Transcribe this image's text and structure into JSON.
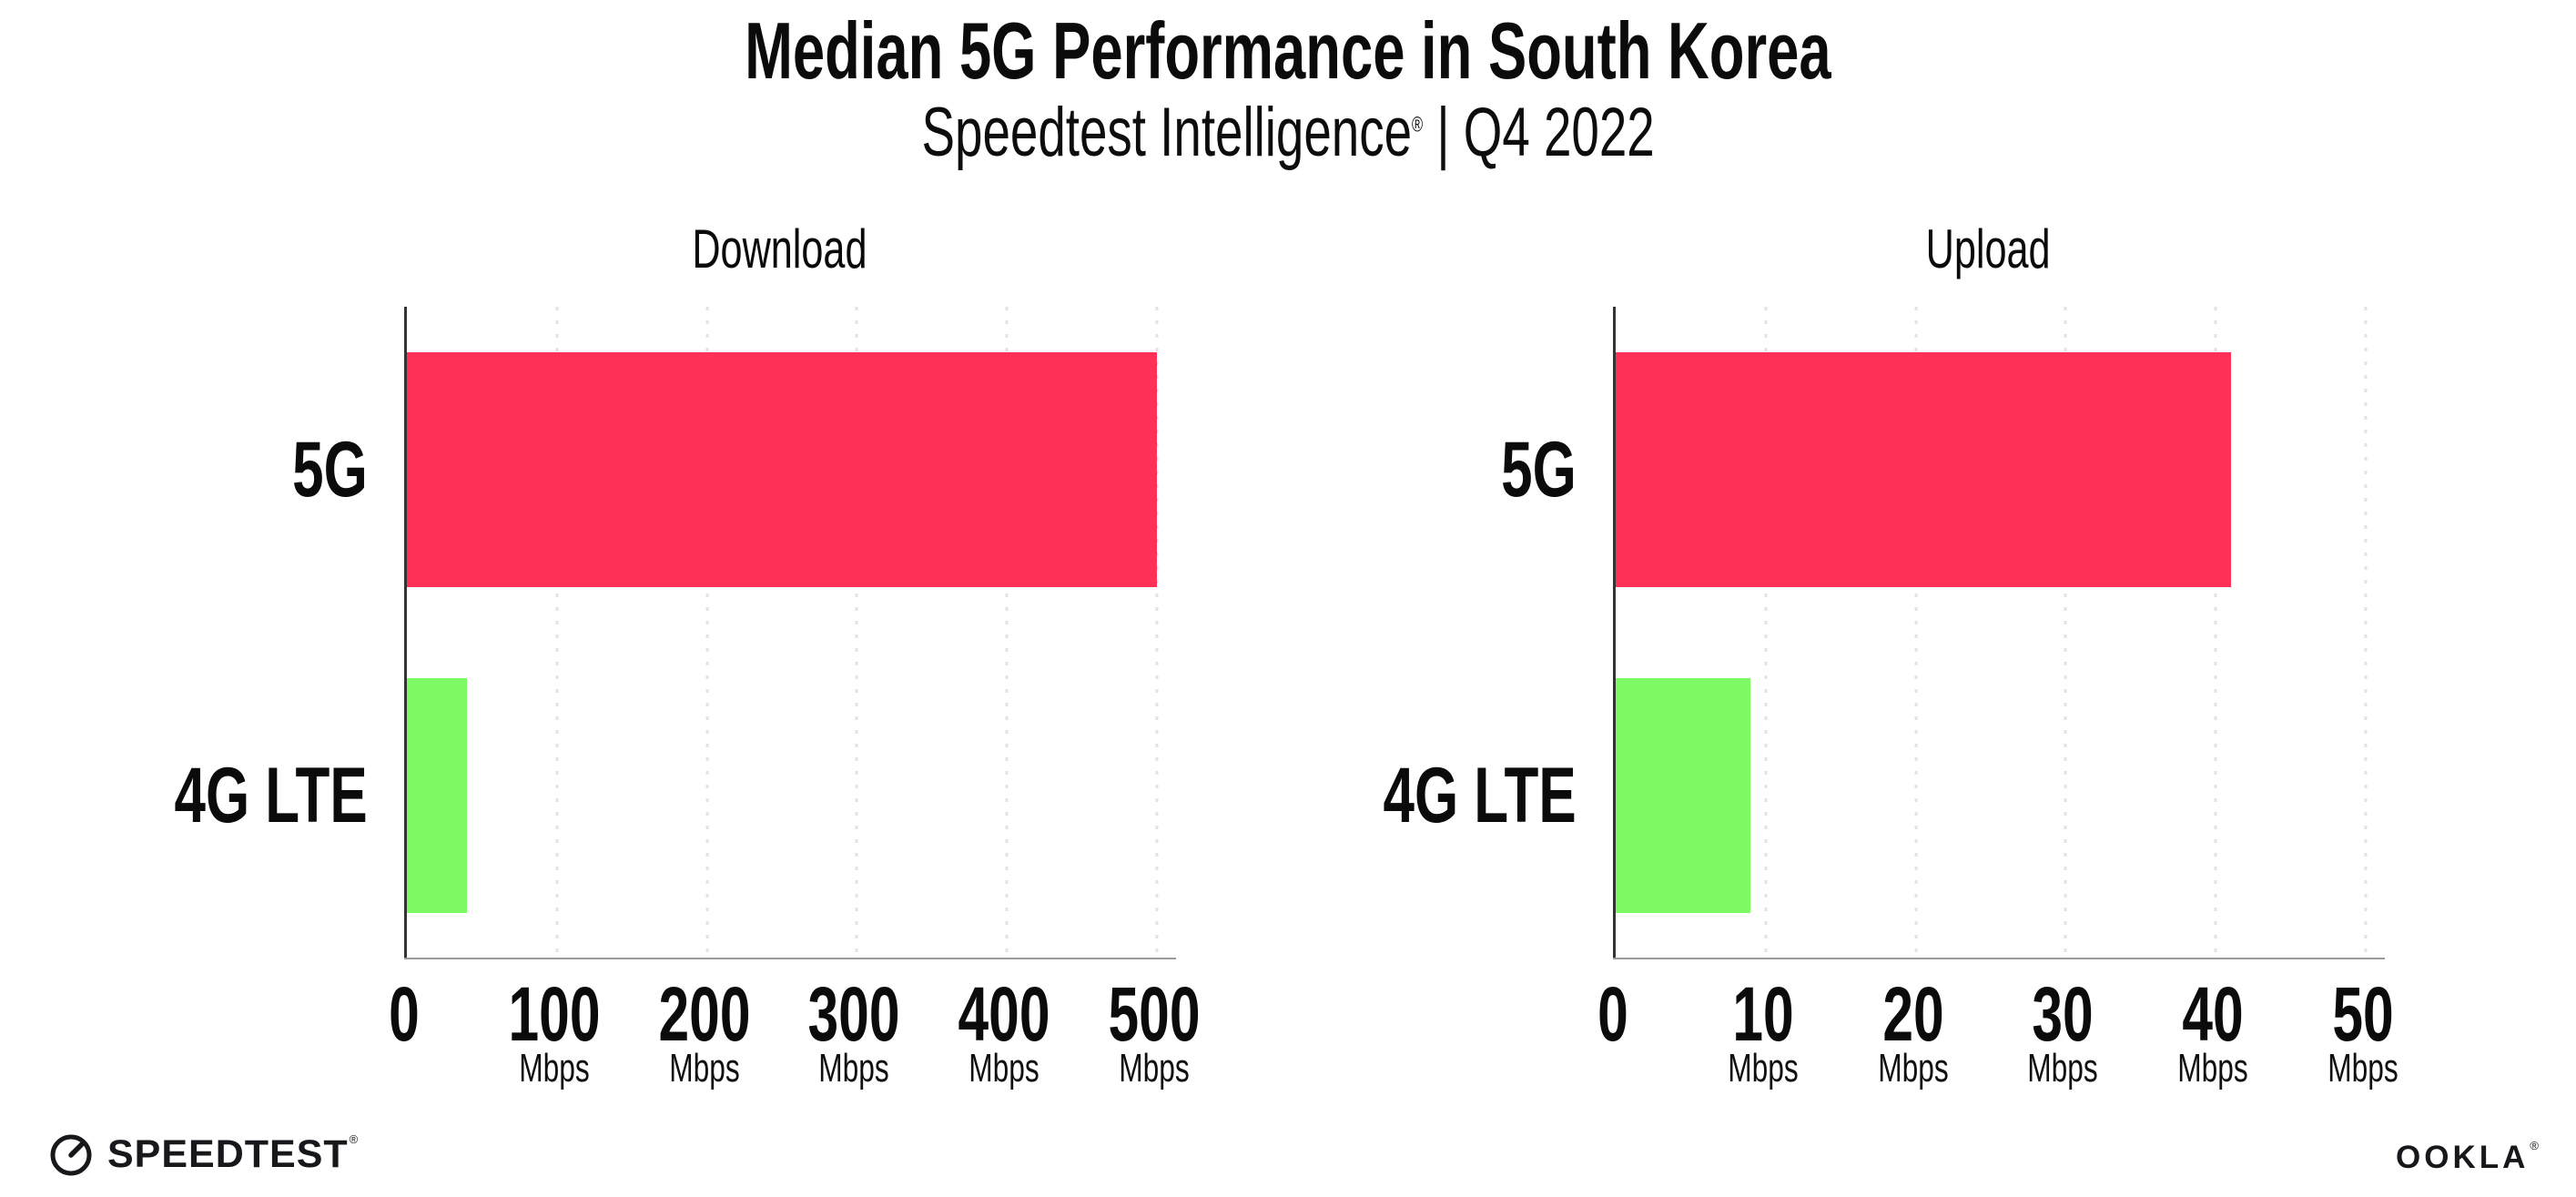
{
  "header": {
    "title": "Median 5G Performance in South Korea",
    "subtitle_brand": "Speedtest Intelligence",
    "subtitle_reg": "®",
    "subtitle_period": "| Q4 2022"
  },
  "chart_data": [
    {
      "type": "bar",
      "orientation": "horizontal",
      "title": "Download",
      "unit": "Mbps",
      "categories": [
        "5G",
        "4G LTE"
      ],
      "values": [
        500,
        40
      ],
      "xlim": [
        0,
        500
      ],
      "xticks": [
        0,
        100,
        200,
        300,
        400,
        500
      ],
      "bar_colors": [
        "#ff3058",
        "#7efa64"
      ],
      "grid": "dotted-vertical",
      "legend": "none"
    },
    {
      "type": "bar",
      "orientation": "horizontal",
      "title": "Upload",
      "unit": "Mbps",
      "categories": [
        "5G",
        "4G LTE"
      ],
      "values": [
        41,
        9
      ],
      "xlim": [
        0,
        50
      ],
      "xticks": [
        0,
        10,
        20,
        30,
        40,
        50
      ],
      "bar_colors": [
        "#ff3058",
        "#7efa64"
      ],
      "grid": "dotted-vertical",
      "legend": "none"
    }
  ],
  "footer": {
    "speedtest_wordmark": "SPEEDTEST",
    "speedtest_reg": "®",
    "ookla_wordmark": "OOKLA",
    "ookla_reg": "®"
  },
  "colors": {
    "bar_5g": "#ff3058",
    "bar_4g_lte": "#7efa64",
    "gridline": "#e2e2ee",
    "axis_line": "#9a9a9a",
    "axis_spine": "#333333",
    "text": "#0b0b0b",
    "background": "#ffffff"
  }
}
